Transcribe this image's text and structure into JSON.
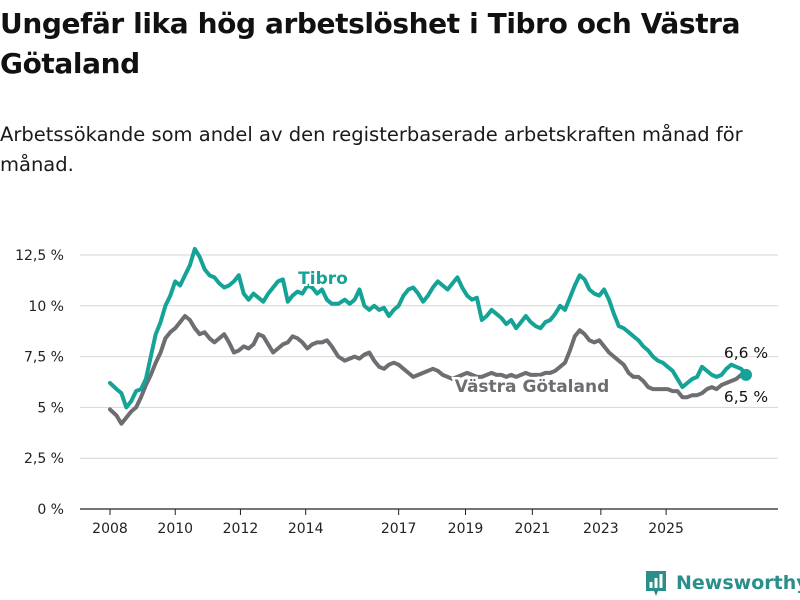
{
  "title": "Ungefär lika hög arbetslöshet i Tibro och Västra Götaland",
  "subtitle": "Arbetssökande som andel av den registerbaserade arbetskraften månad för månad.",
  "brand": {
    "name": "Newsworthy",
    "icon": "bar-chart-logo-icon",
    "color": "#2a8f8a"
  },
  "chart_data": {
    "type": "line",
    "x_start_year": 2008,
    "x_ticks": [
      "2008",
      "2010",
      "2012",
      "2014",
      "2017",
      "2019",
      "2021",
      "2023",
      "2025"
    ],
    "ylim": [
      0,
      12.5
    ],
    "y_ticks": [
      0,
      2.5,
      5,
      7.5,
      10,
      12.5
    ],
    "y_tick_labels": [
      "0 %",
      "2,5 %",
      "5 %",
      "7,5 %",
      "10 %",
      "12,5 %"
    ],
    "grid": true,
    "series": [
      {
        "name": "Tibro",
        "color": "#14a396",
        "end_label": "6,6 %",
        "points": [
          [
            2008.0,
            6.2
          ],
          [
            2008.2,
            5.9
          ],
          [
            2008.35,
            5.7
          ],
          [
            2008.5,
            5.0
          ],
          [
            2008.65,
            5.3
          ],
          [
            2008.8,
            5.8
          ],
          [
            2008.95,
            5.9
          ],
          [
            2009.1,
            6.4
          ],
          [
            2009.25,
            7.5
          ],
          [
            2009.4,
            8.6
          ],
          [
            2009.55,
            9.2
          ],
          [
            2009.7,
            10.0
          ],
          [
            2009.85,
            10.5
          ],
          [
            2010.0,
            11.2
          ],
          [
            2010.15,
            11.0
          ],
          [
            2010.3,
            11.5
          ],
          [
            2010.45,
            12.0
          ],
          [
            2010.6,
            12.8
          ],
          [
            2010.75,
            12.4
          ],
          [
            2010.9,
            11.8
          ],
          [
            2011.05,
            11.5
          ],
          [
            2011.2,
            11.4
          ],
          [
            2011.35,
            11.1
          ],
          [
            2011.5,
            10.9
          ],
          [
            2011.65,
            11.0
          ],
          [
            2011.8,
            11.2
          ],
          [
            2011.95,
            11.5
          ],
          [
            2012.1,
            10.6
          ],
          [
            2012.25,
            10.3
          ],
          [
            2012.4,
            10.6
          ],
          [
            2012.55,
            10.4
          ],
          [
            2012.7,
            10.2
          ],
          [
            2012.85,
            10.6
          ],
          [
            2013.0,
            10.9
          ],
          [
            2013.15,
            11.2
          ],
          [
            2013.3,
            11.3
          ],
          [
            2013.45,
            10.2
          ],
          [
            2013.6,
            10.5
          ],
          [
            2013.75,
            10.7
          ],
          [
            2013.9,
            10.6
          ],
          [
            2014.05,
            11.0
          ],
          [
            2014.2,
            10.9
          ],
          [
            2014.35,
            10.6
          ],
          [
            2014.5,
            10.8
          ],
          [
            2014.65,
            10.3
          ],
          [
            2014.8,
            10.1
          ],
          [
            2015.0,
            10.1
          ],
          [
            2015.2,
            10.3
          ],
          [
            2015.35,
            10.1
          ],
          [
            2015.5,
            10.3
          ],
          [
            2015.65,
            10.8
          ],
          [
            2015.8,
            10.0
          ],
          [
            2015.95,
            9.8
          ],
          [
            2016.1,
            10.0
          ],
          [
            2016.25,
            9.8
          ],
          [
            2016.4,
            9.9
          ],
          [
            2016.55,
            9.5
          ],
          [
            2016.7,
            9.8
          ],
          [
            2016.85,
            10.0
          ],
          [
            2017.0,
            10.5
          ],
          [
            2017.15,
            10.8
          ],
          [
            2017.3,
            10.9
          ],
          [
            2017.45,
            10.6
          ],
          [
            2017.6,
            10.2
          ],
          [
            2017.75,
            10.5
          ],
          [
            2017.9,
            10.9
          ],
          [
            2018.05,
            11.2
          ],
          [
            2018.2,
            11.0
          ],
          [
            2018.35,
            10.8
          ],
          [
            2018.5,
            11.1
          ],
          [
            2018.65,
            11.4
          ],
          [
            2018.8,
            10.9
          ],
          [
            2018.95,
            10.5
          ],
          [
            2019.1,
            10.3
          ],
          [
            2019.25,
            10.4
          ],
          [
            2019.4,
            9.3
          ],
          [
            2019.55,
            9.5
          ],
          [
            2019.7,
            9.8
          ],
          [
            2019.85,
            9.6
          ],
          [
            2020.0,
            9.4
          ],
          [
            2020.15,
            9.1
          ],
          [
            2020.3,
            9.3
          ],
          [
            2020.45,
            8.9
          ],
          [
            2020.6,
            9.2
          ],
          [
            2020.75,
            9.5
          ],
          [
            2020.9,
            9.2
          ],
          [
            2021.05,
            9.0
          ],
          [
            2021.2,
            8.9
          ],
          [
            2021.35,
            9.2
          ],
          [
            2021.5,
            9.3
          ],
          [
            2021.65,
            9.6
          ],
          [
            2021.8,
            10.0
          ],
          [
            2021.95,
            9.8
          ],
          [
            2022.1,
            10.4
          ],
          [
            2022.25,
            11.0
          ],
          [
            2022.4,
            11.5
          ],
          [
            2022.55,
            11.3
          ],
          [
            2022.7,
            10.8
          ],
          [
            2022.85,
            10.6
          ],
          [
            2023.0,
            10.5
          ],
          [
            2023.15,
            10.8
          ],
          [
            2023.3,
            10.3
          ],
          [
            2023.45,
            9.6
          ],
          [
            2023.6,
            9.0
          ],
          [
            2023.75,
            8.9
          ],
          [
            2023.9,
            8.7
          ],
          [
            2024.05,
            8.5
          ],
          [
            2024.2,
            8.3
          ],
          [
            2024.35,
            8.0
          ],
          [
            2024.5,
            7.8
          ],
          [
            2024.65,
            7.5
          ],
          [
            2024.8,
            7.3
          ],
          [
            2024.95,
            7.2
          ],
          [
            2025.1,
            7.0
          ],
          [
            2025.25,
            6.8
          ],
          [
            2025.4,
            6.4
          ],
          [
            2025.55,
            6.0
          ],
          [
            2025.7,
            6.2
          ],
          [
            2025.85,
            6.4
          ],
          [
            2026.0,
            6.5
          ],
          [
            2026.15,
            7.0
          ],
          [
            2026.3,
            6.8
          ],
          [
            2026.45,
            6.6
          ],
          [
            2026.6,
            6.5
          ],
          [
            2026.75,
            6.6
          ],
          [
            2026.9,
            6.9
          ],
          [
            2027.05,
            7.1
          ],
          [
            2027.2,
            7.0
          ],
          [
            2027.35,
            6.9
          ],
          [
            2027.5,
            6.6
          ]
        ]
      },
      {
        "name": "Västra Götaland",
        "color": "#6d6d72",
        "end_label": "6,5 %",
        "points": [
          [
            2008.0,
            4.9
          ],
          [
            2008.2,
            4.6
          ],
          [
            2008.35,
            4.2
          ],
          [
            2008.5,
            4.5
          ],
          [
            2008.65,
            4.8
          ],
          [
            2008.8,
            5.0
          ],
          [
            2008.95,
            5.5
          ],
          [
            2009.1,
            6.1
          ],
          [
            2009.25,
            6.6
          ],
          [
            2009.4,
            7.2
          ],
          [
            2009.55,
            7.7
          ],
          [
            2009.7,
            8.4
          ],
          [
            2009.85,
            8.7
          ],
          [
            2010.0,
            8.9
          ],
          [
            2010.15,
            9.2
          ],
          [
            2010.3,
            9.5
          ],
          [
            2010.45,
            9.3
          ],
          [
            2010.6,
            8.9
          ],
          [
            2010.75,
            8.6
          ],
          [
            2010.9,
            8.7
          ],
          [
            2011.05,
            8.4
          ],
          [
            2011.2,
            8.2
          ],
          [
            2011.35,
            8.4
          ],
          [
            2011.5,
            8.6
          ],
          [
            2011.65,
            8.2
          ],
          [
            2011.8,
            7.7
          ],
          [
            2011.95,
            7.8
          ],
          [
            2012.1,
            8.0
          ],
          [
            2012.25,
            7.9
          ],
          [
            2012.4,
            8.1
          ],
          [
            2012.55,
            8.6
          ],
          [
            2012.7,
            8.5
          ],
          [
            2012.85,
            8.1
          ],
          [
            2013.0,
            7.7
          ],
          [
            2013.15,
            7.9
          ],
          [
            2013.3,
            8.1
          ],
          [
            2013.45,
            8.2
          ],
          [
            2013.6,
            8.5
          ],
          [
            2013.75,
            8.4
          ],
          [
            2013.9,
            8.2
          ],
          [
            2014.05,
            7.9
          ],
          [
            2014.2,
            8.1
          ],
          [
            2014.35,
            8.2
          ],
          [
            2014.5,
            8.2
          ],
          [
            2014.65,
            8.3
          ],
          [
            2014.8,
            8.0
          ],
          [
            2015.0,
            7.5
          ],
          [
            2015.2,
            7.3
          ],
          [
            2015.35,
            7.4
          ],
          [
            2015.5,
            7.5
          ],
          [
            2015.65,
            7.4
          ],
          [
            2015.8,
            7.6
          ],
          [
            2015.95,
            7.7
          ],
          [
            2016.1,
            7.3
          ],
          [
            2016.25,
            7.0
          ],
          [
            2016.4,
            6.9
          ],
          [
            2016.55,
            7.1
          ],
          [
            2016.7,
            7.2
          ],
          [
            2016.85,
            7.1
          ],
          [
            2017.0,
            6.9
          ],
          [
            2017.15,
            6.7
          ],
          [
            2017.3,
            6.5
          ],
          [
            2017.45,
            6.6
          ],
          [
            2017.6,
            6.7
          ],
          [
            2017.75,
            6.8
          ],
          [
            2017.9,
            6.9
          ],
          [
            2018.05,
            6.8
          ],
          [
            2018.2,
            6.6
          ],
          [
            2018.35,
            6.5
          ],
          [
            2018.5,
            6.4
          ],
          [
            2018.65,
            6.5
          ],
          [
            2018.8,
            6.6
          ],
          [
            2018.95,
            6.7
          ],
          [
            2019.1,
            6.6
          ],
          [
            2019.25,
            6.5
          ],
          [
            2019.4,
            6.5
          ],
          [
            2019.55,
            6.6
          ],
          [
            2019.7,
            6.7
          ],
          [
            2019.85,
            6.6
          ],
          [
            2020.0,
            6.6
          ],
          [
            2020.15,
            6.5
          ],
          [
            2020.3,
            6.6
          ],
          [
            2020.45,
            6.5
          ],
          [
            2020.6,
            6.6
          ],
          [
            2020.75,
            6.7
          ],
          [
            2020.9,
            6.6
          ],
          [
            2021.05,
            6.6
          ],
          [
            2021.2,
            6.6
          ],
          [
            2021.35,
            6.7
          ],
          [
            2021.5,
            6.7
          ],
          [
            2021.65,
            6.8
          ],
          [
            2021.8,
            7.0
          ],
          [
            2021.95,
            7.2
          ],
          [
            2022.1,
            7.8
          ],
          [
            2022.25,
            8.5
          ],
          [
            2022.4,
            8.8
          ],
          [
            2022.55,
            8.6
          ],
          [
            2022.7,
            8.3
          ],
          [
            2022.85,
            8.2
          ],
          [
            2023.0,
            8.3
          ],
          [
            2023.15,
            8.0
          ],
          [
            2023.3,
            7.7
          ],
          [
            2023.45,
            7.5
          ],
          [
            2023.6,
            7.3
          ],
          [
            2023.75,
            7.1
          ],
          [
            2023.9,
            6.7
          ],
          [
            2024.05,
            6.5
          ],
          [
            2024.2,
            6.5
          ],
          [
            2024.35,
            6.3
          ],
          [
            2024.5,
            6.0
          ],
          [
            2024.65,
            5.9
          ],
          [
            2024.8,
            5.9
          ],
          [
            2024.95,
            5.9
          ],
          [
            2025.1,
            5.9
          ],
          [
            2025.25,
            5.8
          ],
          [
            2025.4,
            5.8
          ],
          [
            2025.55,
            5.5
          ],
          [
            2025.7,
            5.5
          ],
          [
            2025.85,
            5.6
          ],
          [
            2026.0,
            5.6
          ],
          [
            2026.15,
            5.7
          ],
          [
            2026.3,
            5.9
          ],
          [
            2026.45,
            6.0
          ],
          [
            2026.6,
            5.9
          ],
          [
            2026.75,
            6.1
          ],
          [
            2026.9,
            6.2
          ],
          [
            2027.05,
            6.3
          ],
          [
            2027.2,
            6.4
          ],
          [
            2027.35,
            6.6
          ],
          [
            2027.5,
            6.5
          ]
        ]
      }
    ]
  }
}
